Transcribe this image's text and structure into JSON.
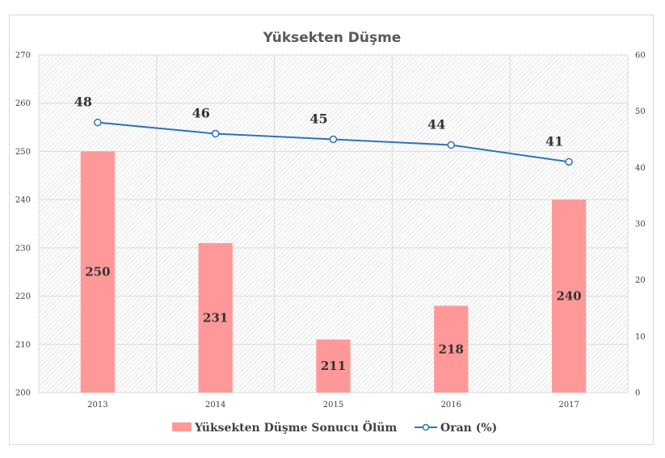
{
  "chart_data": {
    "type": "bar",
    "title": "Yüksekten Düşme",
    "categories": [
      "2013",
      "2014",
      "2015",
      "2016",
      "2017"
    ],
    "series": [
      {
        "name": "Yüksekten Düşme Sonucu Ölüm",
        "type": "bar",
        "axis": "left",
        "color": "#ff9999",
        "values": [
          250,
          231,
          211,
          218,
          240
        ]
      },
      {
        "name": "Oran (%)",
        "type": "line",
        "axis": "right",
        "color": "#2e74b5",
        "values": [
          48,
          46,
          45,
          44,
          41
        ]
      }
    ],
    "y_left": {
      "min": 200,
      "max": 270,
      "step": 10,
      "ticks": [
        "200",
        "210",
        "220",
        "230",
        "240",
        "250",
        "260",
        "270"
      ]
    },
    "y_right": {
      "min": 0,
      "max": 60,
      "step": 10,
      "ticks": [
        "0",
        "10",
        "20",
        "30",
        "40",
        "50",
        "60"
      ]
    },
    "grid": true,
    "legend": "bottom"
  }
}
